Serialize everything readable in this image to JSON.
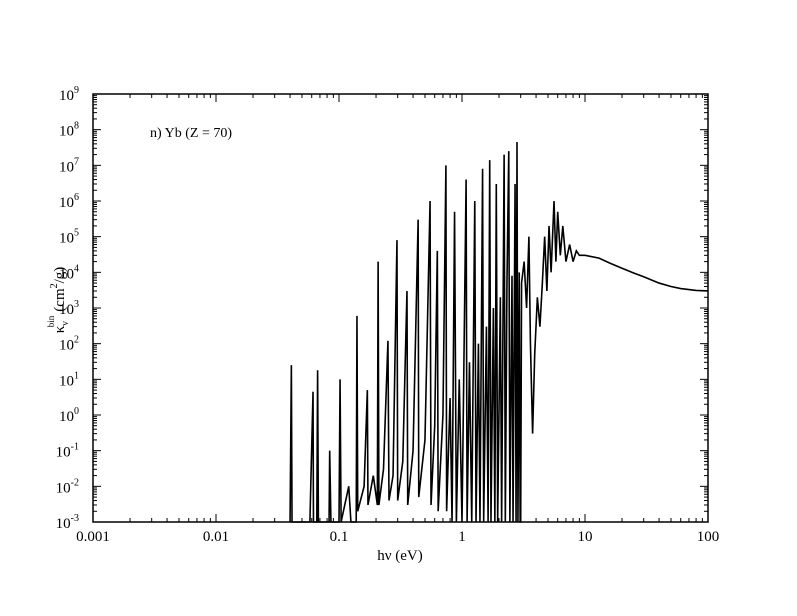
{
  "chart_data": {
    "type": "line",
    "annotation": "n) Yb (Z = 70)",
    "xlabel": "hν (eV)",
    "ylabel": {
      "symbol": "κ",
      "sub": "ν",
      "sup": "bin",
      "unit": "(cm",
      "unit_sup": "2",
      "unit_end": "/g)"
    },
    "xscale": "log",
    "yscale": "log",
    "xlim": [
      0.001,
      100
    ],
    "ylim": [
      0.001,
      1000000000
    ],
    "xticks": [
      0.001,
      0.01,
      0.1,
      1,
      10,
      100
    ],
    "yticks": [
      {
        "value": 0.001,
        "label": "10",
        "exponent": "-3"
      },
      {
        "value": 0.01,
        "label": "10",
        "exponent": "-2"
      },
      {
        "value": 0.1,
        "label": "10",
        "exponent": "-1"
      },
      {
        "value": 1,
        "label": "10",
        "exponent": "0"
      },
      {
        "value": 10,
        "label": "10",
        "exponent": "1"
      },
      {
        "value": 100,
        "label": "10",
        "exponent": "2"
      },
      {
        "value": 1000,
        "label": "10",
        "exponent": "3"
      },
      {
        "value": 10000,
        "label": "10",
        "exponent": "4"
      },
      {
        "value": 100000,
        "label": "10",
        "exponent": "5"
      },
      {
        "value": 1000000,
        "label": "10",
        "exponent": "6"
      },
      {
        "value": 10000000,
        "label": "10",
        "exponent": "7"
      },
      {
        "value": 100000000,
        "label": "10",
        "exponent": "8"
      },
      {
        "value": 1000000000,
        "label": "10",
        "exponent": "9"
      }
    ],
    "minor_ticks": true,
    "color": "#000000",
    "x": [
      0.04,
      0.041,
      0.0415,
      0.058,
      0.0615,
      0.062,
      0.066,
      0.067,
      0.068,
      0.083,
      0.084,
      0.086,
      0.1,
      0.102,
      0.104,
      0.12,
      0.125,
      0.138,
      0.14,
      0.142,
      0.16,
      0.17,
      0.172,
      0.19,
      0.205,
      0.208,
      0.211,
      0.23,
      0.25,
      0.255,
      0.275,
      0.296,
      0.3,
      0.33,
      0.357,
      0.362,
      0.4,
      0.44,
      0.445,
      0.5,
      0.55,
      0.56,
      0.6,
      0.63,
      0.64,
      0.7,
      0.74,
      0.75,
      0.8,
      0.83,
      0.87,
      0.9,
      0.95,
      1.0,
      1.08,
      1.1,
      1.15,
      1.2,
      1.27,
      1.3,
      1.36,
      1.4,
      1.47,
      1.5,
      1.58,
      1.63,
      1.68,
      1.72,
      1.8,
      1.85,
      1.9,
      1.95,
      2.05,
      2.1,
      2.2,
      2.25,
      2.32,
      2.4,
      2.45,
      2.55,
      2.6,
      2.7,
      2.75,
      2.8,
      2.85,
      2.92,
      2.97,
      3.0,
      3.05,
      3.2,
      3.35,
      3.5,
      3.6,
      3.75,
      3.9,
      4.1,
      4.3,
      4.5,
      4.7,
      4.9,
      5.1,
      5.3,
      5.6,
      5.8,
      6.0,
      6.3,
      6.6,
      7.0,
      7.5,
      8.0,
      8.5,
      9.0,
      10,
      13,
      16,
      20,
      25,
      30,
      40,
      50,
      60,
      80,
      100
    ],
    "values": [
      0.001,
      25,
      0.001,
      0.001,
      4.5,
      0.001,
      0.001,
      18,
      0.001,
      0.001,
      0.1,
      0.001,
      0.001,
      10,
      0.001,
      0.01,
      0.001,
      0.001,
      600,
      0.002,
      0.01,
      5,
      0.003,
      0.02,
      0.003,
      20000,
      0.003,
      0.03,
      120,
      0.004,
      0.02,
      80000,
      0.004,
      0.05,
      3000,
      0.003,
      0.1,
      300000,
      0.005,
      0.2,
      1000000,
      0.003,
      0.5,
      40000,
      0.002,
      1,
      10000000,
      0.002,
      3,
      0.001,
      500000,
      0.001,
      10,
      0.001,
      4000000,
      0.001,
      30,
      0.001,
      1000000,
      0.001,
      100,
      0.001,
      8000000,
      0.001,
      300,
      0.001,
      14000000,
      0.001,
      1000,
      0.001,
      3000000,
      0.001,
      2000,
      0.001,
      20000000,
      0.001,
      5000,
      25000000,
      0.001,
      8000,
      0.001,
      3000000,
      0.001,
      45000000,
      0.001,
      10000,
      0.001,
      0.001,
      5000,
      20000,
      1000,
      100000,
      100,
      0.3,
      50,
      2000,
      300,
      5000,
      100000,
      3000,
      200000,
      10000,
      1000000,
      20000,
      500000,
      30000,
      200000,
      20000,
      60000,
      20000,
      40000,
      30000,
      30000,
      25000,
      18000,
      13000,
      9500,
      7500,
      5000,
      4000,
      3500,
      3100,
      3000
    ]
  }
}
